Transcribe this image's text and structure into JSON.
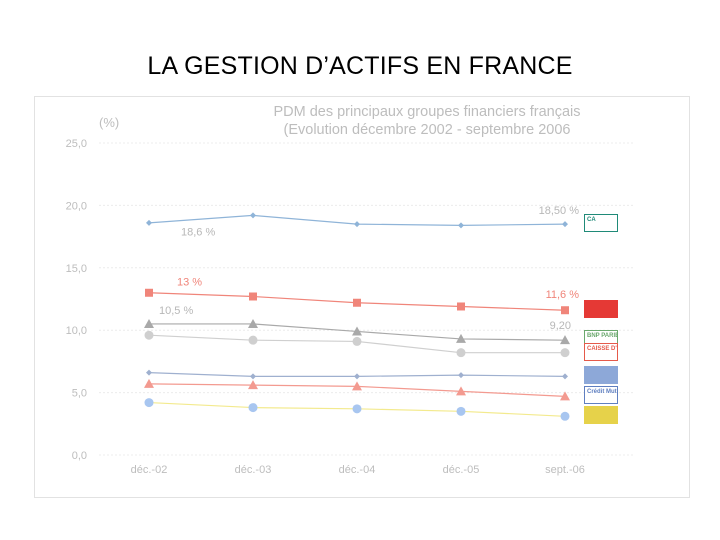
{
  "slide": {
    "title": "LA GESTION D’ACTIFS EN FRANCE"
  },
  "chart_data": {
    "type": "line",
    "title": "PDM des principaux groupes financiers français",
    "subtitle": "(Evolution décembre 2002 - septembre 2006",
    "ylabel": "(%)",
    "xlabel": "",
    "categories": [
      "déc.-02",
      "déc.-03",
      "déc.-04",
      "déc.-05",
      "sept.-06"
    ],
    "y_ticks": [
      "25,0",
      "20,0",
      "15,0",
      "10,0",
      "5,0",
      "0,0"
    ],
    "ylim": [
      0,
      25
    ],
    "grid": true,
    "series": [
      {
        "values": [
          18.6,
          19.2,
          18.5,
          18.4,
          18.5
        ],
        "color": "#8fb4d8",
        "marker": "diamond"
      },
      {
        "values": [
          13.0,
          12.7,
          12.2,
          11.9,
          11.6
        ],
        "color": "#f0857a",
        "marker": "square"
      },
      {
        "values": [
          10.5,
          10.5,
          9.9,
          9.3,
          9.2
        ],
        "color": "#a9a9a9",
        "marker": "triangle"
      },
      {
        "values": [
          9.6,
          9.2,
          9.1,
          8.2,
          8.2
        ],
        "color": "#cfcfcf",
        "marker": "circle"
      },
      {
        "values": [
          6.6,
          6.3,
          6.3,
          6.4,
          6.3
        ],
        "color": "#9fb0cf",
        "marker": "diamond"
      },
      {
        "values": [
          5.7,
          5.6,
          5.5,
          5.1,
          4.7
        ],
        "color": "#f39a90",
        "marker": "triangle"
      },
      {
        "values": [
          4.2,
          3.8,
          3.7,
          3.5,
          3.1
        ],
        "color": "#a8c6f0",
        "marker": "circle",
        "line_color": "#f3ea8e"
      }
    ],
    "annotations": [
      {
        "text": "18,6 %",
        "x": "déc.-02",
        "y": 17.6,
        "anchor": "start",
        "dx": 32,
        "color": "#b7b7b7"
      },
      {
        "text": "18,50 %",
        "x": "sept.-06",
        "y": 19.3,
        "anchor": "end",
        "dx": 14,
        "color": "#b7b7b7"
      },
      {
        "text": "13 %",
        "x": "déc.-02",
        "y": 13.6,
        "anchor": "start",
        "dx": 28,
        "color": "#f0857a"
      },
      {
        "text": "11,6 %",
        "x": "sept.-06",
        "y": 12.6,
        "anchor": "end",
        "dx": 14,
        "color": "#f0857a"
      },
      {
        "text": "10,5 %",
        "x": "déc.-02",
        "y": 11.3,
        "anchor": "start",
        "dx": 10,
        "color": "#b7b7b7"
      },
      {
        "text": "9,20",
        "x": "sept.-06",
        "y": 10.1,
        "anchor": "end",
        "dx": 6,
        "color": "#b7b7b7"
      }
    ],
    "logos": [
      {
        "text": "CA",
        "color": "#1f8a78"
      },
      {
        "text": "",
        "color": "#e53935"
      },
      {
        "text": "BNP PARIBAS",
        "color": "#6aa86d"
      },
      {
        "text": "CAISSE D'EPARGNE",
        "color": "#e55a4a"
      },
      {
        "text": "",
        "color": "#8da8d8"
      },
      {
        "text": "Crédit Mutuel",
        "color": "#5f7fc0"
      },
      {
        "text": "",
        "color": "#e6d24a"
      }
    ]
  }
}
